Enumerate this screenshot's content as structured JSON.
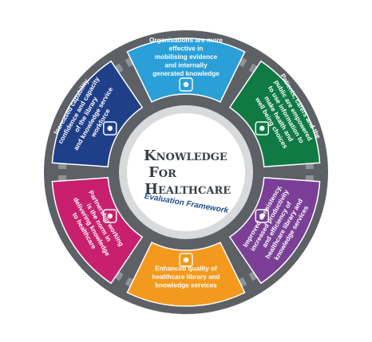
{
  "center": {
    "title_line1_cap": "K",
    "title_line1_rest": "NOWLEDGE",
    "title_line2_cap": "F",
    "title_line2_rest": "OR",
    "title_line3_cap": "H",
    "title_line3_rest": "EALTHCARE",
    "subtitle": "Evaluation Framework"
  },
  "segments": [
    {
      "id": "top",
      "color": "#2a9fd8",
      "icon": "presentation-chart-icon",
      "lines": [
        "Organisations are more",
        "effective in",
        "mobilising evidence",
        "and internally",
        "generated knowledge"
      ]
    },
    {
      "id": "right-top",
      "color": "#0f7a44",
      "icon": "gears-cycle-icon",
      "lines": [
        "Patients, carers and the",
        "public are empowered",
        "to use information to",
        "make health and",
        "well being choices"
      ]
    },
    {
      "id": "right-bottom",
      "color": "#7b3f98",
      "icon": "people-group-icon",
      "lines": [
        "Improved consistency,",
        "increased productivity",
        "and efficiency of",
        "healthcare library and",
        "knowledge services"
      ]
    },
    {
      "id": "bottom",
      "color": "#f39a1e",
      "icon": "binoculars-icon",
      "lines": [
        "Enhanced quality of",
        "healthcare library and",
        "knowledge services"
      ]
    },
    {
      "id": "left-bottom",
      "color": "#c8206e",
      "icon": "target-icon",
      "lines": [
        "Partnership working",
        "is the norm in",
        "delivering knowledge",
        "to healthcare"
      ]
    },
    {
      "id": "left-top",
      "color": "#1f3f88",
      "icon": "handshake-icon",
      "lines": [
        "Increased capability,",
        "confidence and capacity",
        "of the library",
        "and knowledge service",
        "workforce"
      ]
    }
  ]
}
